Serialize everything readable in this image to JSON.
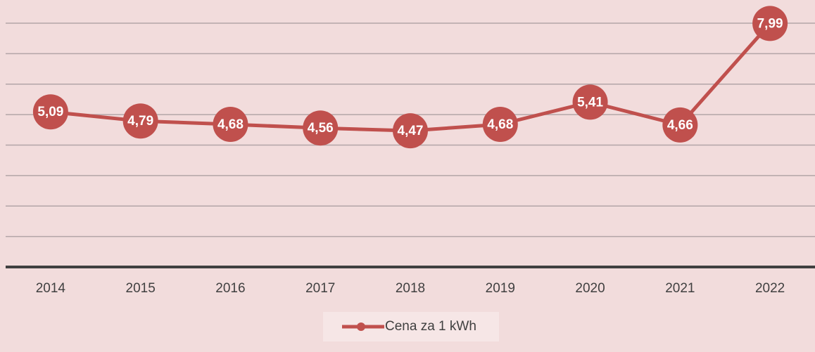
{
  "chart_data": {
    "type": "line",
    "categories": [
      "2014",
      "2015",
      "2016",
      "2017",
      "2018",
      "2019",
      "2020",
      "2021",
      "2022"
    ],
    "series": [
      {
        "name": "Cena za 1 kWh",
        "color": "#c0504d",
        "values": [
          5.09,
          4.79,
          4.68,
          4.56,
          4.47,
          4.68,
          5.41,
          4.66,
          7.99
        ],
        "value_labels": [
          "5,09",
          "4,79",
          "4,68",
          "4,56",
          "4,47",
          "4,68",
          "5,41",
          "4,66",
          "7,99"
        ]
      }
    ],
    "ylim": [
      0,
      8
    ],
    "yticks": [
      0,
      1,
      2,
      3,
      4,
      5,
      6,
      7,
      8
    ],
    "grid": true,
    "legend": "bottom"
  }
}
